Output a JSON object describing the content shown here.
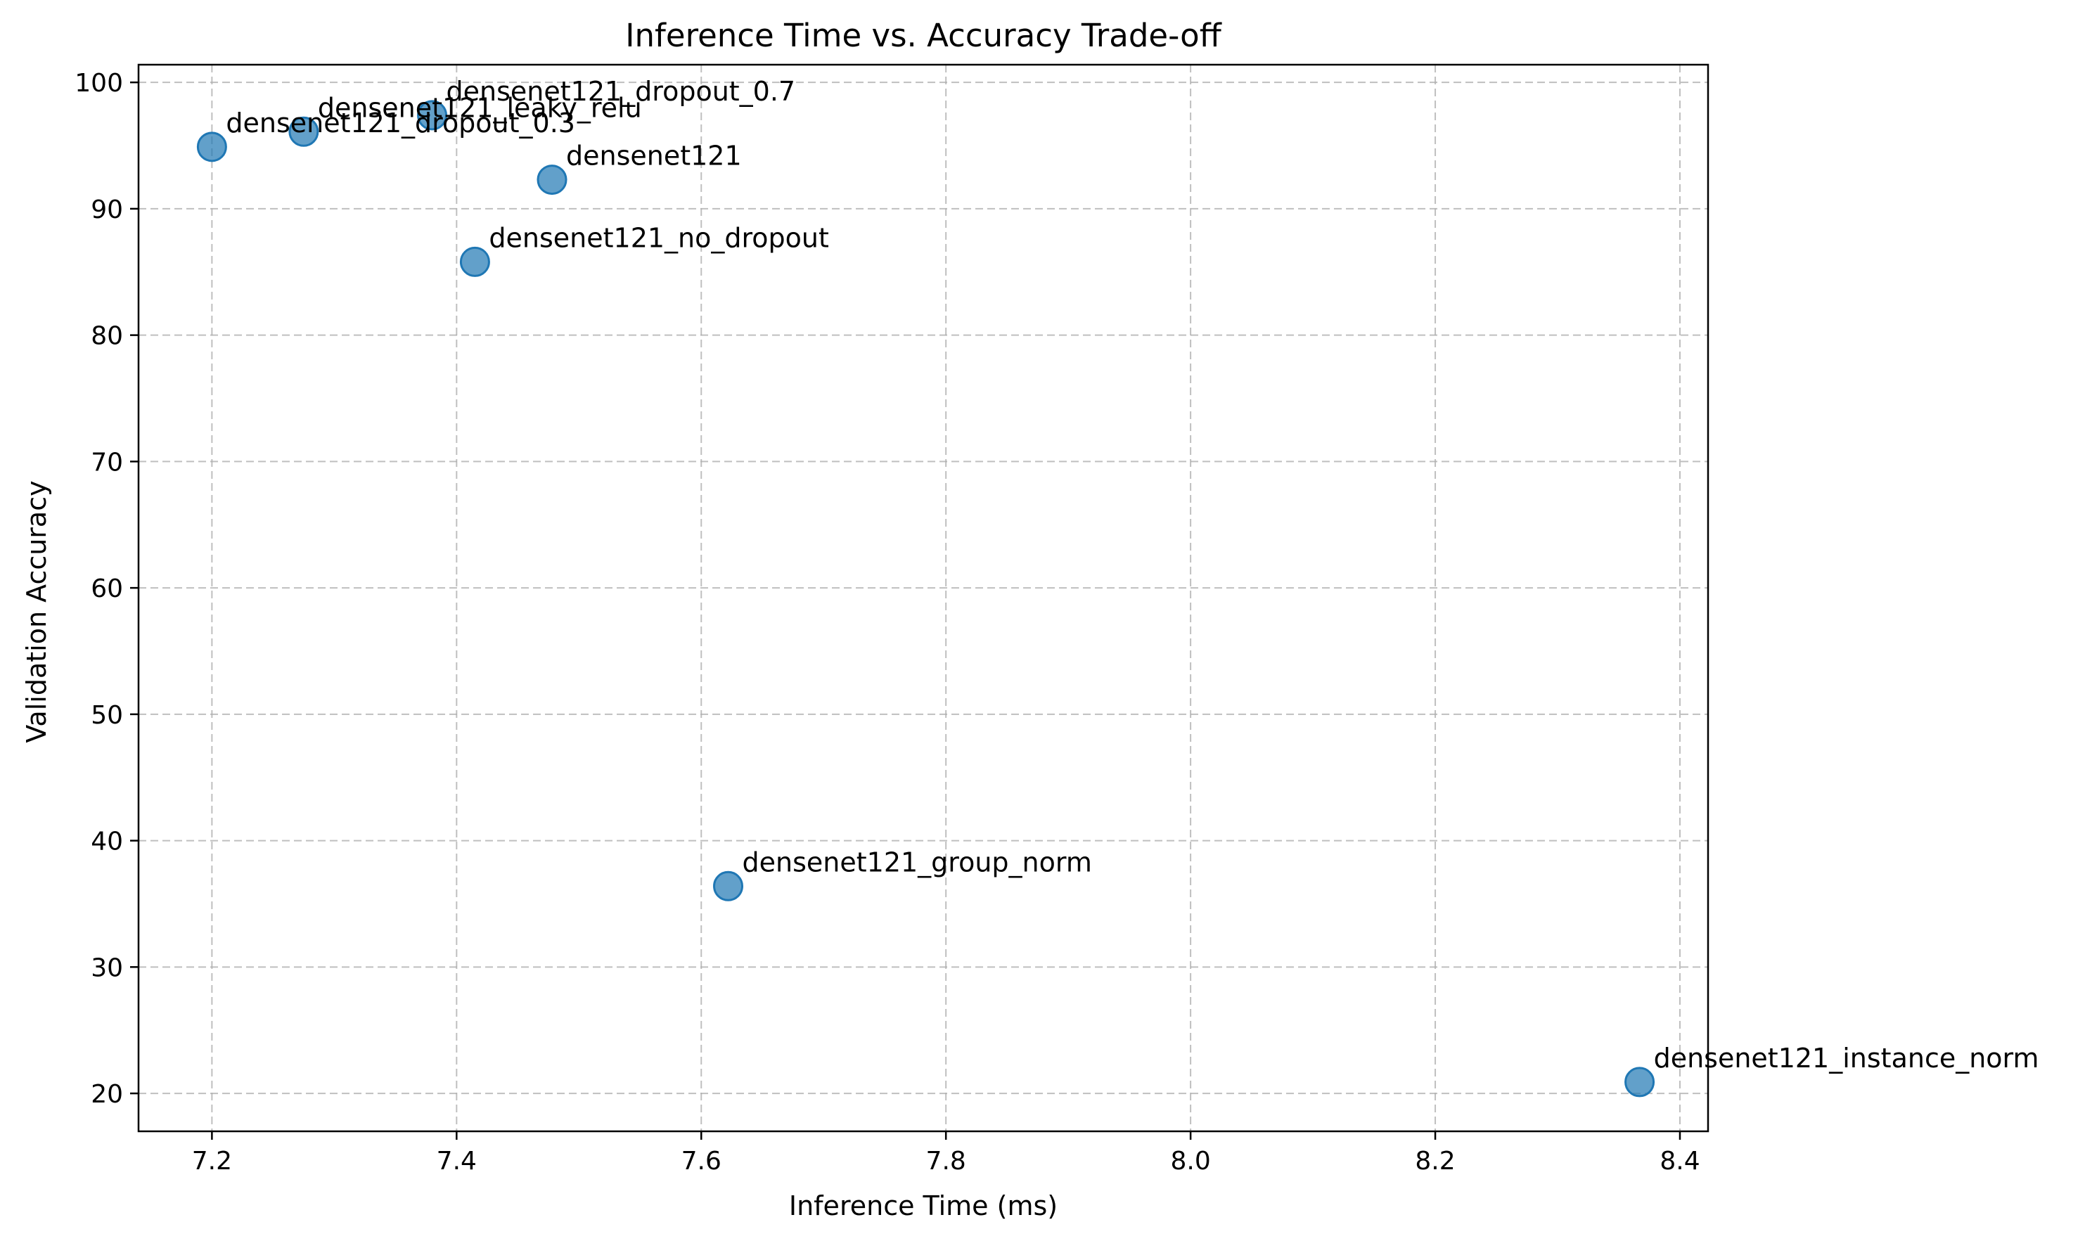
{
  "chart_data": {
    "type": "scatter",
    "title": "Inference Time vs. Accuracy Trade-off",
    "xlabel": "Inference Time (ms)",
    "ylabel": "Validation Accuracy",
    "xlim": [
      7.14,
      8.423
    ],
    "ylim": [
      17.0,
      101.4
    ],
    "xticks": [
      7.2,
      7.4,
      7.6,
      7.8,
      8.0,
      8.2,
      8.4
    ],
    "xtick_labels": [
      "7.2",
      "7.4",
      "7.6",
      "7.8",
      "8.0",
      "8.2",
      "8.4"
    ],
    "yticks": [
      20,
      30,
      40,
      50,
      60,
      70,
      80,
      90,
      100
    ],
    "ytick_labels": [
      "20",
      "30",
      "40",
      "50",
      "60",
      "70",
      "80",
      "90",
      "100"
    ],
    "grid": true,
    "color": "#1f77b4",
    "points": [
      {
        "label": "densenet121_dropout_0.3",
        "x": 7.2,
        "y": 94.9
      },
      {
        "label": "densenet121_leaky_relu",
        "x": 7.275,
        "y": 96.1
      },
      {
        "label": "densenet121_dropout_0.7",
        "x": 7.38,
        "y": 97.4
      },
      {
        "label": "densenet121",
        "x": 7.478,
        "y": 92.3
      },
      {
        "label": "densenet121_no_dropout",
        "x": 7.415,
        "y": 85.8
      },
      {
        "label": "densenet121_group_norm",
        "x": 7.622,
        "y": 36.4
      },
      {
        "label": "densenet121_instance_norm",
        "x": 8.367,
        "y": 20.9
      }
    ]
  }
}
